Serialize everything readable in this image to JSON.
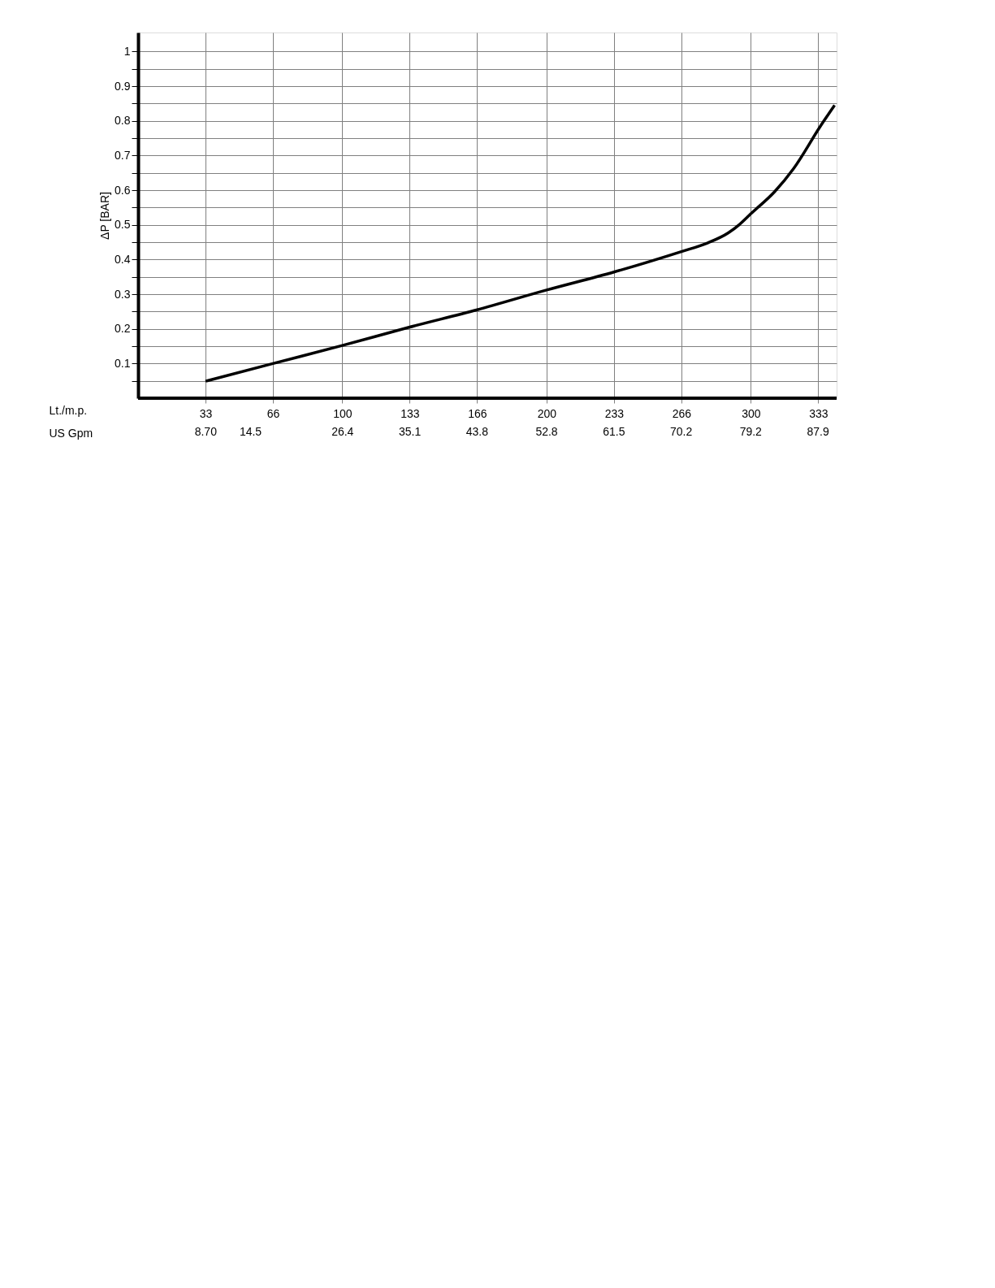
{
  "chart_data": {
    "type": "line",
    "xlabel": "Lt./m.p.",
    "x2label": "US Gpm",
    "ylabel": "ΔP [BAR]",
    "xlim": [
      0,
      342
    ],
    "x2lim": [
      0,
      90.36
    ],
    "ylim": [
      0,
      1.055
    ],
    "xticks": [
      33,
      66,
      100,
      133,
      166,
      200,
      233,
      266,
      300,
      333
    ],
    "x2ticks": [
      {
        "value": 8.7,
        "label": "8.70"
      },
      14.5,
      26.4,
      35.1,
      43.8,
      52.8,
      61.5,
      70.2,
      79.2,
      87.9
    ],
    "yticks": [
      {
        "value": 0.05,
        "label": null
      },
      0.1,
      {
        "value": 0.15,
        "label": null
      },
      0.2,
      {
        "value": 0.25,
        "label": null
      },
      0.3,
      {
        "value": 0.35,
        "label": null
      },
      0.4,
      {
        "value": 0.45,
        "label": null
      },
      0.5,
      {
        "value": 0.55,
        "label": null
      },
      0.6,
      {
        "value": 0.65,
        "label": null
      },
      0.7,
      {
        "value": 0.75,
        "label": null
      },
      0.8,
      {
        "value": 0.85,
        "label": null
      },
      0.9,
      {
        "value": 0.95,
        "label": null
      },
      1
    ],
    "grid": true,
    "legend": false,
    "marker": "none",
    "line_style": "solid",
    "x": [
      33,
      66,
      100,
      133,
      166,
      200,
      233,
      266,
      278.5,
      289,
      294.4,
      300,
      311.7,
      321,
      334.2,
      341
    ],
    "series": [
      {
        "color": "#000000",
        "values": [
          0.049,
          0.1,
          0.152,
          0.205,
          0.255,
          0.312,
          0.364,
          0.423,
          0.447,
          0.477,
          0.501,
          0.532,
          0.596,
          0.663,
          0.786,
          0.845
        ]
      }
    ]
  }
}
